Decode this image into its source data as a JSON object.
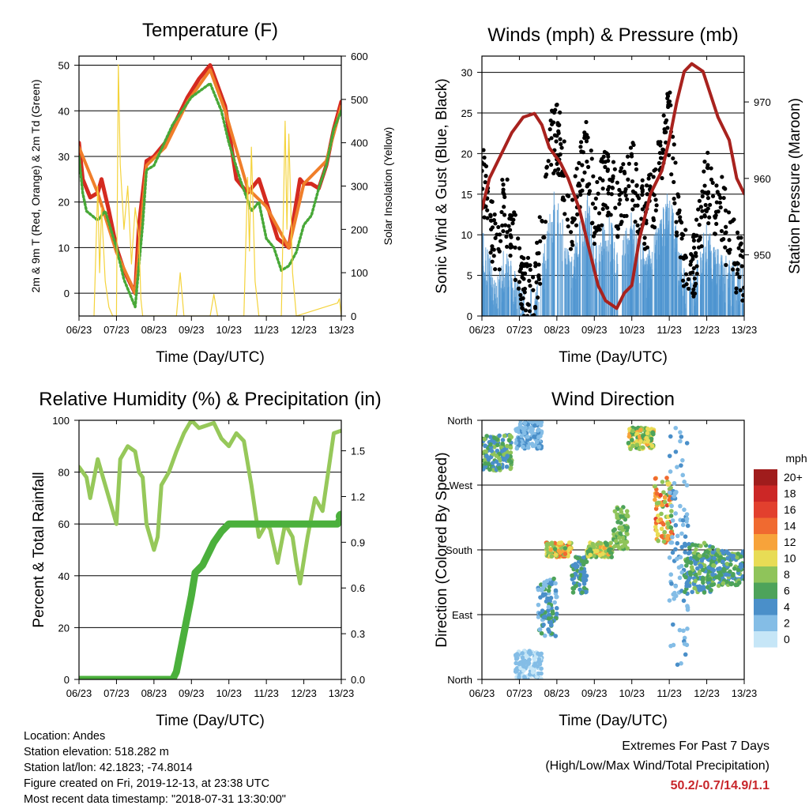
{
  "chart_data": [
    {
      "type": "line",
      "title": "Temperature (F)",
      "xlabel": "Time (Day/UTC)",
      "ylabel": "2m & 9m T (Red, Orange) & 2m Td (Green)",
      "ylabel_right": "Solar Insolation (Yellow)",
      "x_ticks": [
        "06/23",
        "07/23",
        "08/23",
        "09/23",
        "10/23",
        "11/23",
        "12/23",
        "13/23"
      ],
      "xlim": [
        0,
        7
      ],
      "ylim": [
        -5,
        52
      ],
      "y_ticks": [
        0,
        10,
        20,
        30,
        40,
        50
      ],
      "ylim_right": [
        0,
        600
      ],
      "y_ticks_right": [
        0,
        100,
        200,
        300,
        400,
        500,
        600
      ],
      "grid": "horizontal",
      "series": [
        {
          "name": "2m T",
          "color": "#d42a20",
          "axis": "left",
          "x": [
            0,
            0.1,
            0.3,
            0.5,
            0.6,
            0.8,
            1.0,
            1.2,
            1.5,
            1.6,
            1.8,
            2.0,
            2.3,
            2.6,
            2.9,
            3.2,
            3.5,
            3.9,
            4.2,
            4.5,
            4.8,
            5.0,
            5.3,
            5.6,
            5.9,
            6.0,
            6.2,
            6.4,
            6.6,
            6.8,
            7.0
          ],
          "y": [
            33,
            25,
            21,
            22,
            25,
            18,
            10,
            5,
            0,
            15,
            29,
            30,
            33,
            38,
            43,
            47,
            50,
            41,
            25,
            22,
            25,
            20,
            12,
            10,
            25,
            24,
            24,
            23,
            28,
            36,
            42
          ]
        },
        {
          "name": "9m T",
          "color": "#f07e2a",
          "axis": "left",
          "x": [
            0,
            0.5,
            1.0,
            1.5,
            1.8,
            2.3,
            2.9,
            3.5,
            3.9,
            4.5,
            5.0,
            5.6,
            6.0,
            6.6,
            7.0
          ],
          "y": [
            32,
            22,
            9,
            0,
            28,
            32,
            42,
            49,
            40,
            23,
            19,
            10,
            24,
            29,
            41
          ]
        },
        {
          "name": "2m Td",
          "color": "#48a838",
          "axis": "left",
          "x": [
            0,
            0.1,
            0.2,
            0.5,
            0.7,
            1.0,
            1.2,
            1.5,
            1.7,
            1.8,
            2.0,
            2.5,
            3.0,
            3.5,
            3.8,
            4.0,
            4.3,
            4.6,
            4.8,
            5.0,
            5.2,
            5.4,
            5.6,
            5.8,
            6.0,
            6.2,
            6.4,
            6.6,
            6.8,
            7.0
          ],
          "y": [
            30,
            22,
            18,
            16,
            18,
            10,
            3,
            -3,
            15,
            27,
            28,
            37,
            43,
            46,
            40,
            33,
            25,
            18,
            20,
            12,
            10,
            5,
            6,
            9,
            15,
            17,
            23,
            28,
            36,
            40
          ]
        },
        {
          "name": "Solar Insolation",
          "color": "#f4d33c",
          "axis": "right",
          "x": [
            0.4,
            0.5,
            0.55,
            0.6,
            0.7,
            0.8,
            0.9,
            1.0,
            1.05,
            1.1,
            1.2,
            1.3,
            1.4,
            1.5,
            1.6,
            1.65,
            1.7,
            2.6,
            2.7,
            2.8,
            3.5,
            3.6,
            3.7,
            4.4,
            4.5,
            4.55,
            4.6,
            4.7,
            4.8,
            5.4,
            5.5,
            5.55,
            5.6,
            5.7,
            5.8,
            6.9,
            6.95,
            7.0
          ],
          "y": [
            0,
            300,
            100,
            250,
            80,
            20,
            0,
            0,
            580,
            350,
            200,
            300,
            120,
            250,
            180,
            40,
            0,
            0,
            100,
            0,
            0,
            50,
            0,
            0,
            320,
            150,
            390,
            80,
            0,
            0,
            450,
            200,
            420,
            100,
            0,
            30,
            40,
            0
          ]
        }
      ]
    },
    {
      "type": "line",
      "title": "Winds (mph) & Pressure (mb)",
      "xlabel": "Time (Day/UTC)",
      "ylabel": "Sonic Wind & Gust (Blue, Black)",
      "ylabel_right": "Station Pressure (Maroon)",
      "x_ticks": [
        "06/23",
        "07/23",
        "08/23",
        "09/23",
        "10/23",
        "11/23",
        "12/23",
        "13/23"
      ],
      "xlim": [
        0,
        7
      ],
      "ylim": [
        0,
        32
      ],
      "y_ticks": [
        0,
        5,
        10,
        15,
        20,
        25,
        30
      ],
      "ylim_right": [
        942,
        976
      ],
      "y_ticks_right": [
        950,
        960,
        970
      ],
      "grid": "horizontal",
      "series": [
        {
          "name": "Sonic Wind",
          "color": "#4d94d0",
          "axis": "left",
          "x": [
            0,
            0.2,
            0.4,
            0.6,
            0.8,
            1.0,
            1.2,
            1.4,
            1.6,
            1.8,
            2.0,
            2.2,
            2.4,
            2.6,
            2.8,
            3.0,
            3.2,
            3.4,
            3.6,
            3.8,
            4.0,
            4.2,
            4.4,
            4.6,
            4.8,
            5.0,
            5.2,
            5.4,
            5.6,
            5.8,
            6.0,
            6.2,
            6.4,
            6.6,
            6.8,
            7.0
          ],
          "y": [
            8,
            5,
            2,
            6,
            4,
            1,
            0.5,
            0.5,
            4,
            10,
            14,
            8,
            5,
            9,
            13,
            6,
            8,
            10,
            7,
            8,
            10,
            7,
            5,
            8,
            10,
            13,
            8,
            3,
            2,
            5,
            9,
            6,
            5,
            4,
            4,
            3
          ]
        },
        {
          "name": "Gust",
          "color": "#000000",
          "axis": "left",
          "x": [
            0,
            0.2,
            0.4,
            0.6,
            0.8,
            1.0,
            1.2,
            1.4,
            1.6,
            1.8,
            2.0,
            2.2,
            2.4,
            2.6,
            2.8,
            3.0,
            3.2,
            3.4,
            3.6,
            3.8,
            4.0,
            4.2,
            4.4,
            4.6,
            4.8,
            5.0,
            5.2,
            5.4,
            5.6,
            5.8,
            6.0,
            6.2,
            6.4,
            6.6,
            6.8,
            7.0
          ],
          "y": [
            18,
            12,
            8,
            14,
            11,
            5,
            3,
            3,
            10,
            20,
            23,
            17,
            11,
            17,
            20,
            13,
            15,
            17,
            13,
            15,
            18,
            13,
            12,
            15,
            20,
            24,
            14,
            7,
            5,
            10,
            17,
            12,
            13,
            9,
            7,
            5
          ]
        },
        {
          "name": "Station Pressure",
          "color": "#a8221e",
          "axis": "right",
          "x": [
            0,
            0.2,
            0.5,
            0.8,
            1.1,
            1.4,
            1.6,
            1.8,
            2.1,
            2.3,
            2.6,
            2.9,
            3.1,
            3.3,
            3.6,
            3.8,
            4.0,
            4.2,
            4.5,
            4.8,
            5.0,
            5.2,
            5.4,
            5.6,
            5.9,
            6.1,
            6.3,
            6.6,
            6.8,
            7.0
          ],
          "y": [
            956,
            960,
            963,
            966,
            968,
            968.5,
            967,
            964,
            962,
            960,
            956,
            950,
            946,
            944,
            943,
            945,
            946,
            952,
            958,
            961,
            965,
            970,
            974,
            975,
            974,
            971,
            968,
            965,
            960,
            958
          ]
        }
      ]
    },
    {
      "type": "line",
      "title": "Relative Humidity (%) & Precipitation (in)",
      "xlabel": "Time (Day/UTC)",
      "ylabel": "Percent & Total Rainfall",
      "x_ticks": [
        "06/23",
        "07/23",
        "08/23",
        "09/23",
        "10/23",
        "11/23",
        "12/23",
        "13/23"
      ],
      "xlim": [
        0,
        7
      ],
      "ylim": [
        0,
        100
      ],
      "y_ticks": [
        0,
        20,
        40,
        60,
        80,
        100
      ],
      "ylim_right": [
        0,
        1.7
      ],
      "y_ticks_right": [
        "0.0",
        "0.3",
        "0.6",
        "0.9",
        "1.2",
        "1.5"
      ],
      "grid": "horizontal",
      "series": [
        {
          "name": "Relative Humidity",
          "color": "#96c85a",
          "axis": "left",
          "x": [
            0,
            0.2,
            0.3,
            0.5,
            0.7,
            0.9,
            1.0,
            1.1,
            1.3,
            1.5,
            1.6,
            1.7,
            1.8,
            1.9,
            2.0,
            2.1,
            2.2,
            2.4,
            2.6,
            2.8,
            3.0,
            3.2,
            3.4,
            3.6,
            3.8,
            4.0,
            4.2,
            4.4,
            4.6,
            4.8,
            5.0,
            5.1,
            5.3,
            5.5,
            5.7,
            5.8,
            5.9,
            6.1,
            6.3,
            6.5,
            6.7,
            6.8,
            7.0
          ],
          "y": [
            82,
            78,
            70,
            85,
            75,
            65,
            60,
            85,
            90,
            88,
            80,
            78,
            60,
            55,
            50,
            55,
            75,
            80,
            88,
            95,
            100,
            97,
            98,
            99,
            93,
            90,
            95,
            92,
            75,
            55,
            60,
            58,
            45,
            60,
            55,
            45,
            37,
            55,
            70,
            65,
            85,
            95,
            96
          ]
        },
        {
          "name": "Total Precipitation",
          "color": "#4bb03c",
          "axis": "right",
          "x": [
            0,
            2.5,
            2.6,
            2.8,
            3.0,
            3.1,
            3.3,
            3.5,
            3.6,
            3.8,
            4.0,
            6.9,
            7.0
          ],
          "y": [
            0,
            0,
            0.05,
            0.3,
            0.55,
            0.7,
            0.75,
            0.85,
            0.9,
            0.97,
            1.02,
            1.02,
            1.07
          ]
        }
      ]
    },
    {
      "type": "scatter",
      "title": "Wind Direction",
      "xlabel": "Time (Day/UTC)",
      "ylabel": "Direction (Colored By Speed)",
      "x_ticks": [
        "06/23",
        "07/23",
        "08/23",
        "09/23",
        "10/23",
        "11/23",
        "12/23",
        "13/23"
      ],
      "xlim": [
        0,
        7
      ],
      "y_ticks": [
        "North",
        "East",
        "South",
        "West",
        "North"
      ],
      "ylim": [
        0,
        360
      ],
      "grid": "horizontal",
      "legend_title": "mph",
      "legend_placement": "right",
      "colorbar_labels": [
        "20+",
        "18",
        "16",
        "14",
        "12",
        "10",
        "8",
        "6",
        "4",
        "2",
        "0"
      ],
      "colorbar_colors": [
        "#a01c1c",
        "#cc2726",
        "#e2402e",
        "#f06a30",
        "#f7a33a",
        "#e8dc55",
        "#8fc45a",
        "#4da35a",
        "#4a8fc9",
        "#84bde6",
        "#c6e6f7"
      ],
      "clusters": [
        {
          "x": [
            0,
            0.8
          ],
          "dir": [
            290,
            340
          ],
          "speed": [
            3,
            9
          ]
        },
        {
          "x": [
            0.9,
            1.6
          ],
          "dir": [
            0,
            40
          ],
          "speed": [
            0,
            3
          ]
        },
        {
          "x": [
            0.9,
            1.6
          ],
          "dir": [
            320,
            360
          ],
          "speed": [
            1,
            4
          ]
        },
        {
          "x": [
            1.5,
            2.0
          ],
          "dir": [
            60,
            140
          ],
          "speed": [
            2,
            6
          ]
        },
        {
          "x": [
            1.7,
            2.4
          ],
          "dir": [
            170,
            190
          ],
          "speed": [
            6,
            14
          ]
        },
        {
          "x": [
            2.4,
            2.8
          ],
          "dir": [
            120,
            170
          ],
          "speed": [
            3,
            7
          ]
        },
        {
          "x": [
            2.8,
            3.5
          ],
          "dir": [
            170,
            190
          ],
          "speed": [
            5,
            12
          ]
        },
        {
          "x": [
            3.5,
            3.9
          ],
          "dir": [
            180,
            240
          ],
          "speed": [
            5,
            9
          ]
        },
        {
          "x": [
            3.9,
            4.6
          ],
          "dir": [
            320,
            350
          ],
          "speed": [
            5,
            12
          ]
        },
        {
          "x": [
            4.6,
            5.1
          ],
          "dir": [
            190,
            280
          ],
          "speed": [
            6,
            16
          ]
        },
        {
          "x": [
            5.0,
            5.5
          ],
          "dir": [
            20,
            360
          ],
          "speed": [
            1,
            4
          ]
        },
        {
          "x": [
            5.4,
            6.2
          ],
          "dir": [
            120,
            190
          ],
          "speed": [
            3,
            8
          ]
        },
        {
          "x": [
            6.0,
            7.0
          ],
          "dir": [
            130,
            180
          ],
          "speed": [
            3,
            8
          ]
        }
      ]
    }
  ],
  "info": {
    "location": "Location: Andes",
    "elevation": "Station elevation: 518.282 m",
    "latlon": "Station lat/lon: 42.1823; -74.8014",
    "created": "Figure created on Fri, 2019-12-13, at 23:38 UTC",
    "recent": "Most recent data timestamp: \"2018-07-31 13:30:00\""
  },
  "extremes": {
    "title": "Extremes For Past 7 Days",
    "subtitle": "(High/Low/Max Wind/Total Precipitation)",
    "values": "50.2/-0.7/14.9/1.1"
  }
}
